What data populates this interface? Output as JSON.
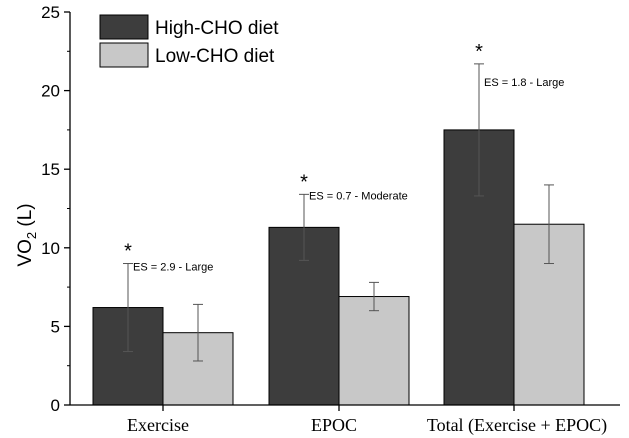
{
  "chart_data": {
    "type": "bar",
    "categories": [
      "Exercise",
      "EPOC",
      "Total (Exercise + EPOC)"
    ],
    "series": [
      {
        "name": "High-CHO diet",
        "color": "#3d3d3d",
        "values": [
          6.2,
          11.3,
          17.5
        ],
        "err_high": [
          9.0,
          13.4,
          21.7
        ],
        "err_low": [
          3.4,
          9.2,
          13.3
        ]
      },
      {
        "name": "Low-CHO diet",
        "color": "#c8c8c8",
        "values": [
          4.6,
          6.9,
          11.5
        ],
        "err_high": [
          6.4,
          7.8,
          14.0
        ],
        "err_low": [
          2.8,
          6.0,
          9.0
        ]
      }
    ],
    "ylabel_main": "VO",
    "ylabel_sub": "2",
    "ylabel_unit": " (L)",
    "ylim": [
      0,
      25
    ],
    "yticks": [
      "0",
      "5",
      "10",
      "15",
      "20",
      "25"
    ],
    "significance": [
      "*",
      "*",
      "*"
    ],
    "effect_sizes": [
      "ES = 2.9 - Large",
      "ES = 0.7 - Moderate",
      "ES = 1.8 - Large"
    ],
    "legend_position": "top-left",
    "grid": false
  }
}
